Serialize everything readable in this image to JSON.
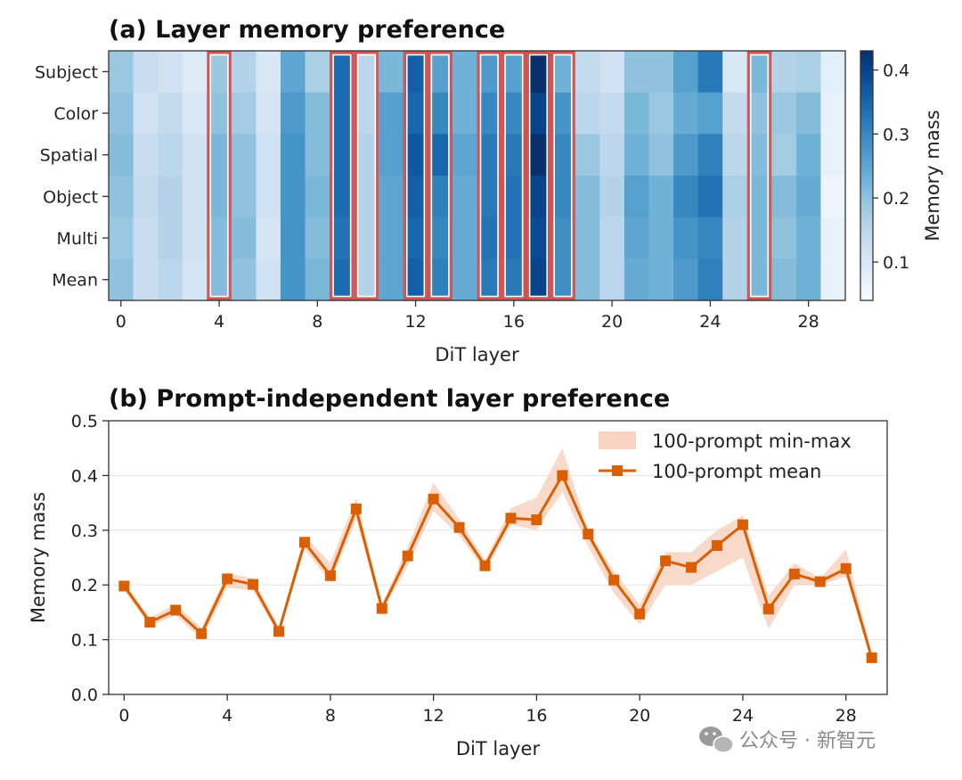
{
  "chart_data": [
    {
      "type": "heatmap",
      "title": "(a) Layer memory preference",
      "xlabel": "DiT layer",
      "ylabel": "",
      "rows": [
        "Subject",
        "Color",
        "Spatial",
        "Object",
        "Multi",
        "Mean"
      ],
      "x_ticks": [
        0,
        4,
        8,
        12,
        16,
        20,
        24,
        28
      ],
      "values": [
        [
          0.19,
          0.13,
          0.12,
          0.09,
          0.19,
          0.16,
          0.1,
          0.25,
          0.17,
          0.34,
          0.15,
          0.22,
          0.36,
          0.26,
          0.23,
          0.27,
          0.26,
          0.43,
          0.23,
          0.14,
          0.12,
          0.2,
          0.2,
          0.26,
          0.32,
          0.1,
          0.22,
          0.16,
          0.17,
          0.08
        ],
        [
          0.2,
          0.12,
          0.14,
          0.1,
          0.2,
          0.18,
          0.11,
          0.27,
          0.21,
          0.34,
          0.15,
          0.26,
          0.35,
          0.3,
          0.23,
          0.3,
          0.3,
          0.4,
          0.28,
          0.15,
          0.14,
          0.22,
          0.19,
          0.24,
          0.26,
          0.14,
          0.2,
          0.19,
          0.21,
          0.07
        ],
        [
          0.21,
          0.13,
          0.15,
          0.12,
          0.22,
          0.2,
          0.12,
          0.28,
          0.21,
          0.34,
          0.16,
          0.26,
          0.37,
          0.35,
          0.25,
          0.32,
          0.32,
          0.43,
          0.3,
          0.19,
          0.15,
          0.23,
          0.2,
          0.27,
          0.31,
          0.15,
          0.21,
          0.18,
          0.23,
          0.07
        ],
        [
          0.2,
          0.14,
          0.16,
          0.12,
          0.22,
          0.2,
          0.12,
          0.28,
          0.22,
          0.34,
          0.16,
          0.25,
          0.36,
          0.31,
          0.24,
          0.32,
          0.33,
          0.4,
          0.3,
          0.21,
          0.16,
          0.26,
          0.23,
          0.3,
          0.33,
          0.17,
          0.22,
          0.21,
          0.24,
          0.06
        ],
        [
          0.19,
          0.13,
          0.16,
          0.12,
          0.21,
          0.21,
          0.11,
          0.28,
          0.21,
          0.33,
          0.16,
          0.25,
          0.35,
          0.3,
          0.24,
          0.33,
          0.33,
          0.39,
          0.29,
          0.21,
          0.15,
          0.25,
          0.23,
          0.28,
          0.3,
          0.16,
          0.22,
          0.2,
          0.23,
          0.07
        ],
        [
          0.2,
          0.13,
          0.15,
          0.11,
          0.21,
          0.2,
          0.12,
          0.28,
          0.22,
          0.34,
          0.16,
          0.25,
          0.36,
          0.31,
          0.24,
          0.32,
          0.32,
          0.4,
          0.29,
          0.21,
          0.15,
          0.24,
          0.23,
          0.27,
          0.31,
          0.16,
          0.22,
          0.21,
          0.23,
          0.07
        ]
      ],
      "highlighted_layers": [
        4,
        9,
        10,
        12,
        13,
        15,
        16,
        17,
        18,
        26
      ],
      "highlight_color": "#d9534f",
      "colorbar": {
        "label": "Memory mass",
        "range": [
          0.04,
          0.43
        ],
        "ticks": [
          0.1,
          0.2,
          0.3,
          0.4
        ],
        "colormap": "Blues"
      }
    },
    {
      "type": "line",
      "title": "(b) Prompt-independent layer preference",
      "xlabel": "DiT layer",
      "ylabel": "Memory mass",
      "xlim": [
        -0.6,
        29.6
      ],
      "ylim": [
        0.0,
        0.5
      ],
      "x_ticks": [
        0,
        4,
        8,
        12,
        16,
        20,
        24,
        28
      ],
      "y_ticks": [
        0.0,
        0.1,
        0.2,
        0.3,
        0.4,
        0.5
      ],
      "grid": "horizontal",
      "legend_position": "top-right",
      "x": [
        0,
        1,
        2,
        3,
        4,
        5,
        6,
        7,
        8,
        9,
        10,
        11,
        12,
        13,
        14,
        15,
        16,
        17,
        18,
        19,
        20,
        21,
        22,
        23,
        24,
        25,
        26,
        27,
        28,
        29
      ],
      "series": [
        {
          "name": "100-prompt mean",
          "color": "#d95f02",
          "marker": "square",
          "values": [
            0.198,
            0.132,
            0.154,
            0.111,
            0.211,
            0.201,
            0.115,
            0.278,
            0.217,
            0.339,
            0.157,
            0.253,
            0.357,
            0.305,
            0.235,
            0.322,
            0.319,
            0.4,
            0.293,
            0.209,
            0.147,
            0.244,
            0.232,
            0.272,
            0.31,
            0.156,
            0.22,
            0.206,
            0.23,
            0.067
          ]
        }
      ],
      "band": {
        "name": "100-prompt min-max",
        "color": "#f8d3c1",
        "min": [
          0.19,
          0.125,
          0.145,
          0.1,
          0.195,
          0.19,
          0.108,
          0.265,
          0.205,
          0.32,
          0.15,
          0.235,
          0.335,
          0.29,
          0.225,
          0.31,
          0.3,
          0.37,
          0.27,
          0.185,
          0.127,
          0.2,
          0.2,
          0.225,
          0.25,
          0.12,
          0.2,
          0.2,
          0.215,
          0.06
        ],
        "max": [
          0.205,
          0.14,
          0.165,
          0.122,
          0.222,
          0.212,
          0.123,
          0.29,
          0.24,
          0.36,
          0.165,
          0.27,
          0.387,
          0.32,
          0.245,
          0.34,
          0.36,
          0.45,
          0.3,
          0.225,
          0.165,
          0.26,
          0.26,
          0.3,
          0.327,
          0.18,
          0.24,
          0.212,
          0.265,
          0.075
        ]
      }
    }
  ],
  "watermark": {
    "text": "公众号 · 新智元",
    "icon": "wechat-icon"
  }
}
